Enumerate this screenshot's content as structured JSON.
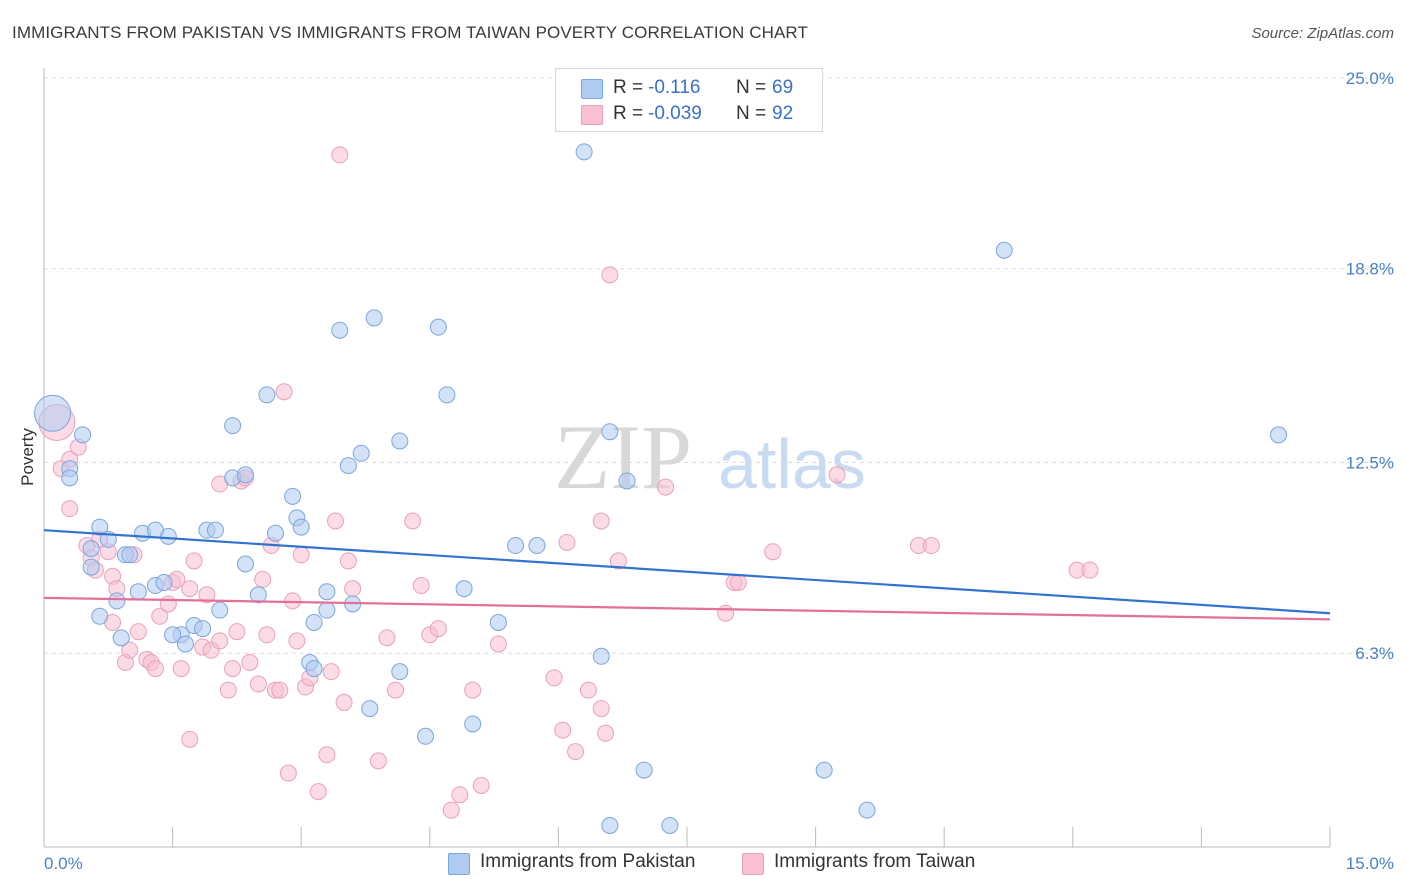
{
  "title": "IMMIGRANTS FROM PAKISTAN VS IMMIGRANTS FROM TAIWAN POVERTY CORRELATION CHART",
  "source": "Source: ZipAtlas.com",
  "watermark": {
    "zip": "ZIP",
    "atlas": "atlas"
  },
  "legend": {
    "rows": [
      {
        "r_label": "R =",
        "r_value": "-0.116",
        "n_label": "N =",
        "n_value": "69"
      },
      {
        "r_label": "R =",
        "r_value": "-0.039",
        "n_label": "N =",
        "n_value": "92"
      }
    ]
  },
  "bottom_legend": {
    "pakistan": "Immigrants from Pakistan",
    "taiwan": "Immigrants from Taiwan"
  },
  "colors": {
    "pakistan_fill": "#aecbf0",
    "pakistan_stroke": "#7aa6dd",
    "pakistan_line": "#3373d0",
    "taiwan_fill": "#f8c0d2",
    "taiwan_stroke": "#eba0b8",
    "taiwan_line": "#e46f98",
    "tick_text": "#4a7fc8",
    "grid": "#dcdcdc"
  },
  "chart_data": {
    "type": "scatter",
    "ylabel": "Poverty",
    "xlim": [
      0,
      15
    ],
    "ylim": [
      0,
      25
    ],
    "x_tick_labels": [
      "0.0%",
      "15.0%"
    ],
    "y_ticks": [
      {
        "value": 25.0,
        "label": "25.0%"
      },
      {
        "value": 18.8,
        "label": "18.8%"
      },
      {
        "value": 12.5,
        "label": "12.5%"
      },
      {
        "value": 6.3,
        "label": "6.3%"
      }
    ],
    "grid": true,
    "legend_position": "top-center",
    "series": [
      {
        "name": "Immigrants from Pakistan",
        "trend": {
          "x": [
            0,
            15
          ],
          "y": [
            10.3,
            7.6
          ]
        },
        "points": [
          [
            0.1,
            14.1
          ],
          [
            0.3,
            12.3
          ],
          [
            0.3,
            12.0
          ],
          [
            0.45,
            13.4
          ],
          [
            0.65,
            10.4
          ],
          [
            0.75,
            10.0
          ],
          [
            0.55,
            9.7
          ],
          [
            0.95,
            9.5
          ],
          [
            1.0,
            9.5
          ],
          [
            1.1,
            8.3
          ],
          [
            1.15,
            10.2
          ],
          [
            0.55,
            9.1
          ],
          [
            1.3,
            8.5
          ],
          [
            1.4,
            8.6
          ],
          [
            1.45,
            10.1
          ],
          [
            1.3,
            10.3
          ],
          [
            0.85,
            8.0
          ],
          [
            0.65,
            7.5
          ],
          [
            1.6,
            6.9
          ],
          [
            1.65,
            6.6
          ],
          [
            1.75,
            7.2
          ],
          [
            1.85,
            7.1
          ],
          [
            1.9,
            10.3
          ],
          [
            2.0,
            10.3
          ],
          [
            2.05,
            7.7
          ],
          [
            2.2,
            13.7
          ],
          [
            2.2,
            12.0
          ],
          [
            2.35,
            12.1
          ],
          [
            2.35,
            9.2
          ],
          [
            2.5,
            8.2
          ],
          [
            2.6,
            14.7
          ],
          [
            2.7,
            10.2
          ],
          [
            2.9,
            11.4
          ],
          [
            2.95,
            10.7
          ],
          [
            3.0,
            10.4
          ],
          [
            3.1,
            6.0
          ],
          [
            3.15,
            5.8
          ],
          [
            3.15,
            7.3
          ],
          [
            3.3,
            8.3
          ],
          [
            3.3,
            7.7
          ],
          [
            3.45,
            16.8
          ],
          [
            3.55,
            12.4
          ],
          [
            3.6,
            7.9
          ],
          [
            3.7,
            12.8
          ],
          [
            3.8,
            4.5
          ],
          [
            3.85,
            17.2
          ],
          [
            4.15,
            13.2
          ],
          [
            4.15,
            5.7
          ],
          [
            4.45,
            3.6
          ],
          [
            4.6,
            16.9
          ],
          [
            4.7,
            14.7
          ],
          [
            4.9,
            8.4
          ],
          [
            5.0,
            4.0
          ],
          [
            5.3,
            7.3
          ],
          [
            5.5,
            9.8
          ],
          [
            5.75,
            9.8
          ],
          [
            6.3,
            22.6
          ],
          [
            6.5,
            6.2
          ],
          [
            6.6,
            13.5
          ],
          [
            6.6,
            0.7
          ],
          [
            6.8,
            11.9
          ],
          [
            7.0,
            2.5
          ],
          [
            7.3,
            0.7
          ],
          [
            9.1,
            2.5
          ],
          [
            9.6,
            1.2
          ],
          [
            11.2,
            19.4
          ],
          [
            14.4,
            13.4
          ],
          [
            0.9,
            6.8
          ],
          [
            1.5,
            6.9
          ]
        ]
      },
      {
        "name": "Immigrants from Taiwan",
        "trend": {
          "x": [
            0,
            15
          ],
          "y": [
            8.1,
            7.4
          ]
        },
        "points": [
          [
            0.15,
            13.8
          ],
          [
            0.2,
            12.3
          ],
          [
            0.3,
            12.6
          ],
          [
            0.3,
            11.0
          ],
          [
            0.4,
            13.0
          ],
          [
            0.5,
            9.8
          ],
          [
            0.55,
            9.4
          ],
          [
            0.6,
            9.0
          ],
          [
            0.65,
            10.0
          ],
          [
            0.75,
            9.6
          ],
          [
            0.8,
            8.8
          ],
          [
            0.8,
            7.3
          ],
          [
            0.85,
            8.4
          ],
          [
            0.95,
            6.0
          ],
          [
            1.0,
            6.4
          ],
          [
            1.05,
            9.5
          ],
          [
            1.1,
            7.0
          ],
          [
            1.2,
            6.1
          ],
          [
            1.25,
            6.0
          ],
          [
            1.3,
            5.8
          ],
          [
            1.35,
            7.5
          ],
          [
            1.45,
            7.9
          ],
          [
            1.5,
            8.6
          ],
          [
            1.55,
            8.7
          ],
          [
            1.6,
            5.8
          ],
          [
            1.7,
            3.5
          ],
          [
            1.7,
            8.4
          ],
          [
            1.75,
            9.3
          ],
          [
            1.85,
            6.5
          ],
          [
            1.9,
            8.2
          ],
          [
            1.95,
            6.4
          ],
          [
            2.05,
            6.7
          ],
          [
            2.05,
            11.8
          ],
          [
            2.15,
            5.1
          ],
          [
            2.2,
            5.8
          ],
          [
            2.25,
            7.0
          ],
          [
            2.3,
            11.9
          ],
          [
            2.35,
            12.0
          ],
          [
            2.4,
            6.0
          ],
          [
            2.5,
            5.3
          ],
          [
            2.55,
            8.7
          ],
          [
            2.6,
            6.9
          ],
          [
            2.65,
            9.8
          ],
          [
            2.7,
            5.1
          ],
          [
            2.75,
            5.1
          ],
          [
            2.8,
            14.8
          ],
          [
            2.85,
            2.4
          ],
          [
            2.9,
            8.0
          ],
          [
            2.95,
            6.7
          ],
          [
            3.0,
            9.5
          ],
          [
            3.05,
            5.2
          ],
          [
            3.1,
            5.5
          ],
          [
            3.2,
            1.8
          ],
          [
            3.3,
            3.0
          ],
          [
            3.35,
            5.7
          ],
          [
            3.4,
            10.6
          ],
          [
            3.45,
            22.5
          ],
          [
            3.5,
            4.7
          ],
          [
            3.55,
            9.3
          ],
          [
            3.6,
            8.4
          ],
          [
            3.9,
            2.8
          ],
          [
            4.0,
            6.8
          ],
          [
            4.1,
            5.1
          ],
          [
            4.3,
            10.6
          ],
          [
            4.4,
            8.5
          ],
          [
            4.5,
            6.9
          ],
          [
            4.6,
            7.1
          ],
          [
            4.75,
            1.2
          ],
          [
            4.85,
            1.7
          ],
          [
            5.0,
            5.1
          ],
          [
            5.1,
            2.0
          ],
          [
            5.3,
            6.6
          ],
          [
            5.95,
            5.5
          ],
          [
            6.05,
            3.8
          ],
          [
            6.1,
            9.9
          ],
          [
            6.2,
            3.1
          ],
          [
            6.35,
            5.1
          ],
          [
            6.5,
            10.6
          ],
          [
            6.5,
            4.5
          ],
          [
            6.55,
            3.7
          ],
          [
            6.6,
            18.6
          ],
          [
            6.7,
            9.3
          ],
          [
            7.25,
            11.7
          ],
          [
            7.95,
            7.6
          ],
          [
            8.05,
            8.6
          ],
          [
            8.1,
            8.6
          ],
          [
            8.5,
            9.6
          ],
          [
            9.25,
            12.1
          ],
          [
            10.2,
            9.8
          ],
          [
            10.35,
            9.8
          ],
          [
            12.05,
            9.0
          ],
          [
            12.2,
            9.0
          ]
        ]
      }
    ]
  }
}
